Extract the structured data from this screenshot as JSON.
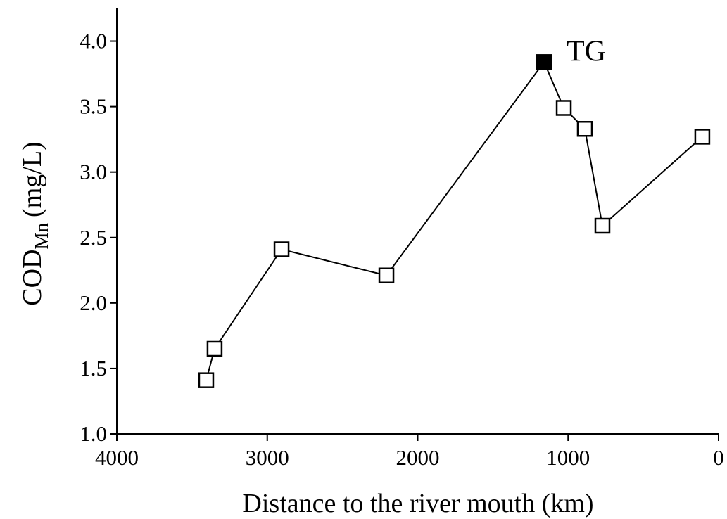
{
  "chart_data": {
    "type": "line",
    "xlabel": "Distance to the river mouth (km)",
    "ylabel": "COD",
    "ylabel_subscript": "Mn",
    "ylabel_unit": "(mg/L)",
    "x": [
      3406,
      3350,
      2905,
      2208,
      1160,
      1029,
      889,
      772,
      108
    ],
    "series": [
      {
        "color": "#000000",
        "values": [
          1.41,
          1.65,
          2.41,
          2.21,
          3.84,
          3.49,
          3.33,
          2.59,
          3.27
        ],
        "marker_fills": [
          "#ffffff",
          "#ffffff",
          "#ffffff",
          "#ffffff",
          "#000000",
          "#ffffff",
          "#ffffff",
          "#ffffff",
          "#ffffff"
        ]
      }
    ],
    "annotations": [
      {
        "text": "TG",
        "x": 1160,
        "y": 3.84
      }
    ],
    "xlim": [
      4000,
      0
    ],
    "xticks": [
      4000,
      3000,
      2000,
      1000,
      0
    ],
    "ylim": [
      1,
      4.25
    ],
    "yticks": [
      {
        "value": 1,
        "label": "1.0"
      },
      1.5,
      {
        "value": 2,
        "label": "2.0"
      },
      2.5,
      {
        "value": 3,
        "label": "3.0"
      },
      3.5,
      {
        "value": 4,
        "label": "4.0"
      }
    ],
    "grid": false
  }
}
